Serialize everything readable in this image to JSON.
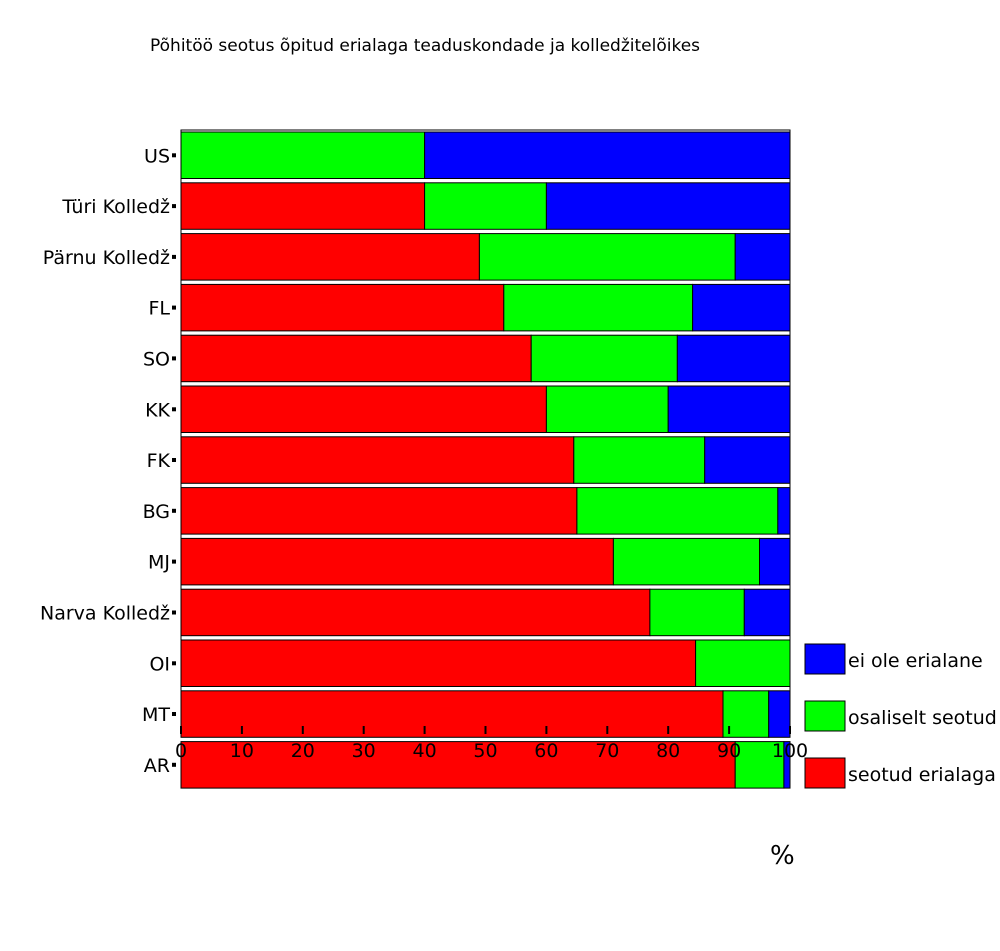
{
  "chart_data": {
    "type": "bar",
    "orientation": "horizontal",
    "stacked": true,
    "title": "Põhitöö seotus õpitud erialaga teaduskondade ja kolledžitelõikes",
    "xlabel": "%",
    "ylabel": "",
    "xlim": [
      0,
      100
    ],
    "xticks": [
      "0",
      "10",
      "20",
      "30",
      "40",
      "50",
      "60",
      "70",
      "80",
      "90",
      "100"
    ],
    "categories": [
      "US",
      "Türi Kolledž",
      "Pärnu Kolledž",
      "FL",
      "SO",
      "KK",
      "FK",
      "BG",
      "MJ",
      "Narva Kolledž",
      "OI",
      "MT",
      "AR"
    ],
    "series": [
      {
        "name": "seotud erialaga",
        "color": "#ff0000",
        "values": [
          0,
          40,
          49,
          53,
          57.5,
          60,
          64.5,
          65,
          71,
          77,
          84.5,
          89,
          91
        ]
      },
      {
        "name": "osaliselt seotud",
        "color": "#00ff00",
        "values": [
          40,
          20,
          42,
          31,
          24,
          20,
          21.5,
          33,
          24,
          15.5,
          15.5,
          7.5,
          8
        ]
      },
      {
        "name": "ei ole erialane",
        "color": "#0000ff",
        "values": [
          60,
          40,
          9,
          16,
          18.5,
          20,
          14,
          2,
          5,
          7.5,
          0,
          3.5,
          1
        ]
      }
    ],
    "legend_position": "right",
    "legend_order": [
      "ei ole erialane",
      "osaliselt seotud",
      "seotud erialaga"
    ],
    "grid": false
  }
}
